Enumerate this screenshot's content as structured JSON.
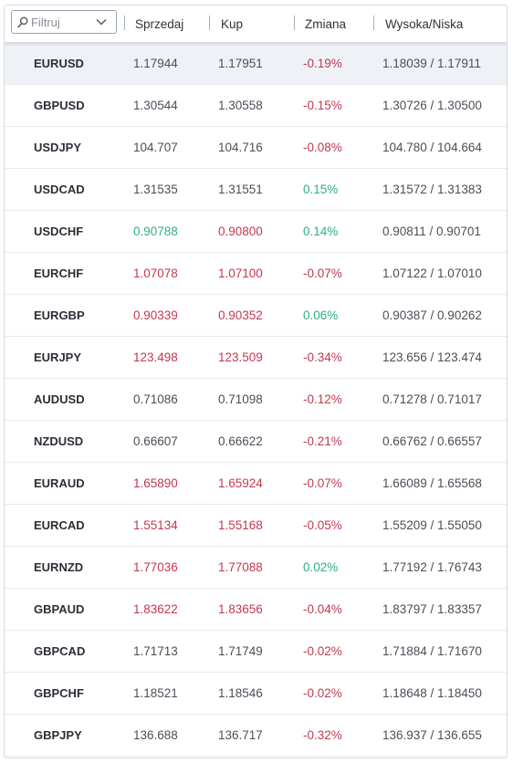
{
  "filter": {
    "placeholder": "Filtruj",
    "icon": "search-icon"
  },
  "columns": {
    "sell": "Sprzedaj",
    "buy": "Kup",
    "change": "Zmiana",
    "high_low": "Wysoka/Niska"
  },
  "colors": {
    "up": "#2eae86",
    "down": "#c3384e",
    "neutral": "#4a4f57",
    "selected_row": "#eef2f7"
  },
  "rows": [
    {
      "symbol": "EURUSD",
      "sell": "1.17944",
      "buy": "1.17951",
      "change": "-0.19%",
      "high_low": "1.18039 / 1.17911",
      "sell_dir": "neutral",
      "buy_dir": "neutral",
      "change_dir": "down",
      "selected": true
    },
    {
      "symbol": "GBPUSD",
      "sell": "1.30544",
      "buy": "1.30558",
      "change": "-0.15%",
      "high_low": "1.30726 / 1.30500",
      "sell_dir": "neutral",
      "buy_dir": "neutral",
      "change_dir": "down"
    },
    {
      "symbol": "USDJPY",
      "sell": "104.707",
      "buy": "104.716",
      "change": "-0.08%",
      "high_low": "104.780 / 104.664",
      "sell_dir": "neutral",
      "buy_dir": "neutral",
      "change_dir": "down"
    },
    {
      "symbol": "USDCAD",
      "sell": "1.31535",
      "buy": "1.31551",
      "change": "0.15%",
      "high_low": "1.31572 / 1.31383",
      "sell_dir": "neutral",
      "buy_dir": "neutral",
      "change_dir": "up"
    },
    {
      "symbol": "USDCHF",
      "sell": "0.90788",
      "buy": "0.90800",
      "change": "0.14%",
      "high_low": "0.90811 / 0.90701",
      "sell_dir": "up",
      "buy_dir": "down",
      "change_dir": "up"
    },
    {
      "symbol": "EURCHF",
      "sell": "1.07078",
      "buy": "1.07100",
      "change": "-0.07%",
      "high_low": "1.07122 / 1.07010",
      "sell_dir": "down",
      "buy_dir": "down",
      "change_dir": "down"
    },
    {
      "symbol": "EURGBP",
      "sell": "0.90339",
      "buy": "0.90352",
      "change": "0.06%",
      "high_low": "0.90387 / 0.90262",
      "sell_dir": "down",
      "buy_dir": "down",
      "change_dir": "up"
    },
    {
      "symbol": "EURJPY",
      "sell": "123.498",
      "buy": "123.509",
      "change": "-0.34%",
      "high_low": "123.656 / 123.474",
      "sell_dir": "down",
      "buy_dir": "down",
      "change_dir": "down"
    },
    {
      "symbol": "AUDUSD",
      "sell": "0.71086",
      "buy": "0.71098",
      "change": "-0.12%",
      "high_low": "0.71278 / 0.71017",
      "sell_dir": "neutral",
      "buy_dir": "neutral",
      "change_dir": "down"
    },
    {
      "symbol": "NZDUSD",
      "sell": "0.66607",
      "buy": "0.66622",
      "change": "-0.21%",
      "high_low": "0.66762 / 0.66557",
      "sell_dir": "neutral",
      "buy_dir": "neutral",
      "change_dir": "down"
    },
    {
      "symbol": "EURAUD",
      "sell": "1.65890",
      "buy": "1.65924",
      "change": "-0.07%",
      "high_low": "1.66089 / 1.65568",
      "sell_dir": "down",
      "buy_dir": "down",
      "change_dir": "down"
    },
    {
      "symbol": "EURCAD",
      "sell": "1.55134",
      "buy": "1.55168",
      "change": "-0.05%",
      "high_low": "1.55209 / 1.55050",
      "sell_dir": "down",
      "buy_dir": "down",
      "change_dir": "down"
    },
    {
      "symbol": "EURNZD",
      "sell": "1.77036",
      "buy": "1.77088",
      "change": "0.02%",
      "high_low": "1.77192 / 1.76743",
      "sell_dir": "down",
      "buy_dir": "down",
      "change_dir": "up"
    },
    {
      "symbol": "GBPAUD",
      "sell": "1.83622",
      "buy": "1.83656",
      "change": "-0.04%",
      "high_low": "1.83797 / 1.83357",
      "sell_dir": "down",
      "buy_dir": "down",
      "change_dir": "down"
    },
    {
      "symbol": "GBPCAD",
      "sell": "1.71713",
      "buy": "1.71749",
      "change": "-0.02%",
      "high_low": "1.71884 / 1.71670",
      "sell_dir": "neutral",
      "buy_dir": "neutral",
      "change_dir": "down"
    },
    {
      "symbol": "GBPCHF",
      "sell": "1.18521",
      "buy": "1.18546",
      "change": "-0.02%",
      "high_low": "1.18648 / 1.18450",
      "sell_dir": "neutral",
      "buy_dir": "neutral",
      "change_dir": "down"
    },
    {
      "symbol": "GBPJPY",
      "sell": "136.688",
      "buy": "136.717",
      "change": "-0.32%",
      "high_low": "136.937 / 136.655",
      "sell_dir": "neutral",
      "buy_dir": "neutral",
      "change_dir": "down"
    }
  ]
}
